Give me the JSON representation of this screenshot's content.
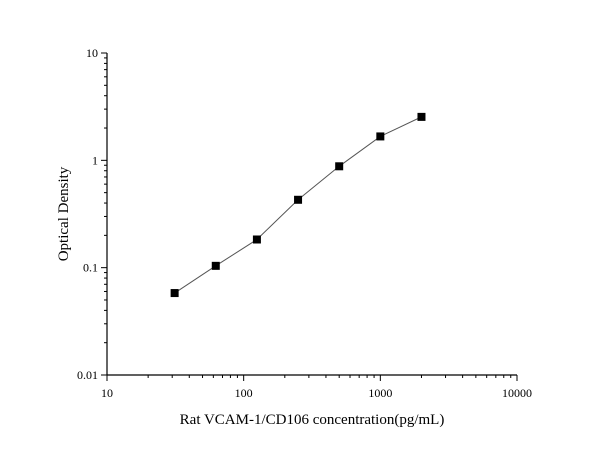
{
  "chart_data": {
    "type": "line",
    "title": "",
    "xlabel": "Rat VCAM-1/CD106 concentration(pg/mL)",
    "ylabel": "Optical Density",
    "xscale": "log",
    "yscale": "log",
    "xlim": [
      10,
      10000
    ],
    "ylim": [
      0.01,
      10
    ],
    "xticks": [
      "10",
      "100",
      "1000",
      "10000"
    ],
    "yticks": [
      "0.01",
      "0.1",
      "1",
      "10"
    ],
    "grid": false,
    "marker": "square",
    "line_color": "#555555",
    "marker_color": "#000000",
    "series": [
      {
        "x": [
          31.25,
          62.5,
          125,
          250,
          500,
          1000,
          2000
        ],
        "y": [
          0.058,
          0.104,
          0.183,
          0.429,
          0.88,
          1.67,
          2.54
        ]
      }
    ]
  }
}
